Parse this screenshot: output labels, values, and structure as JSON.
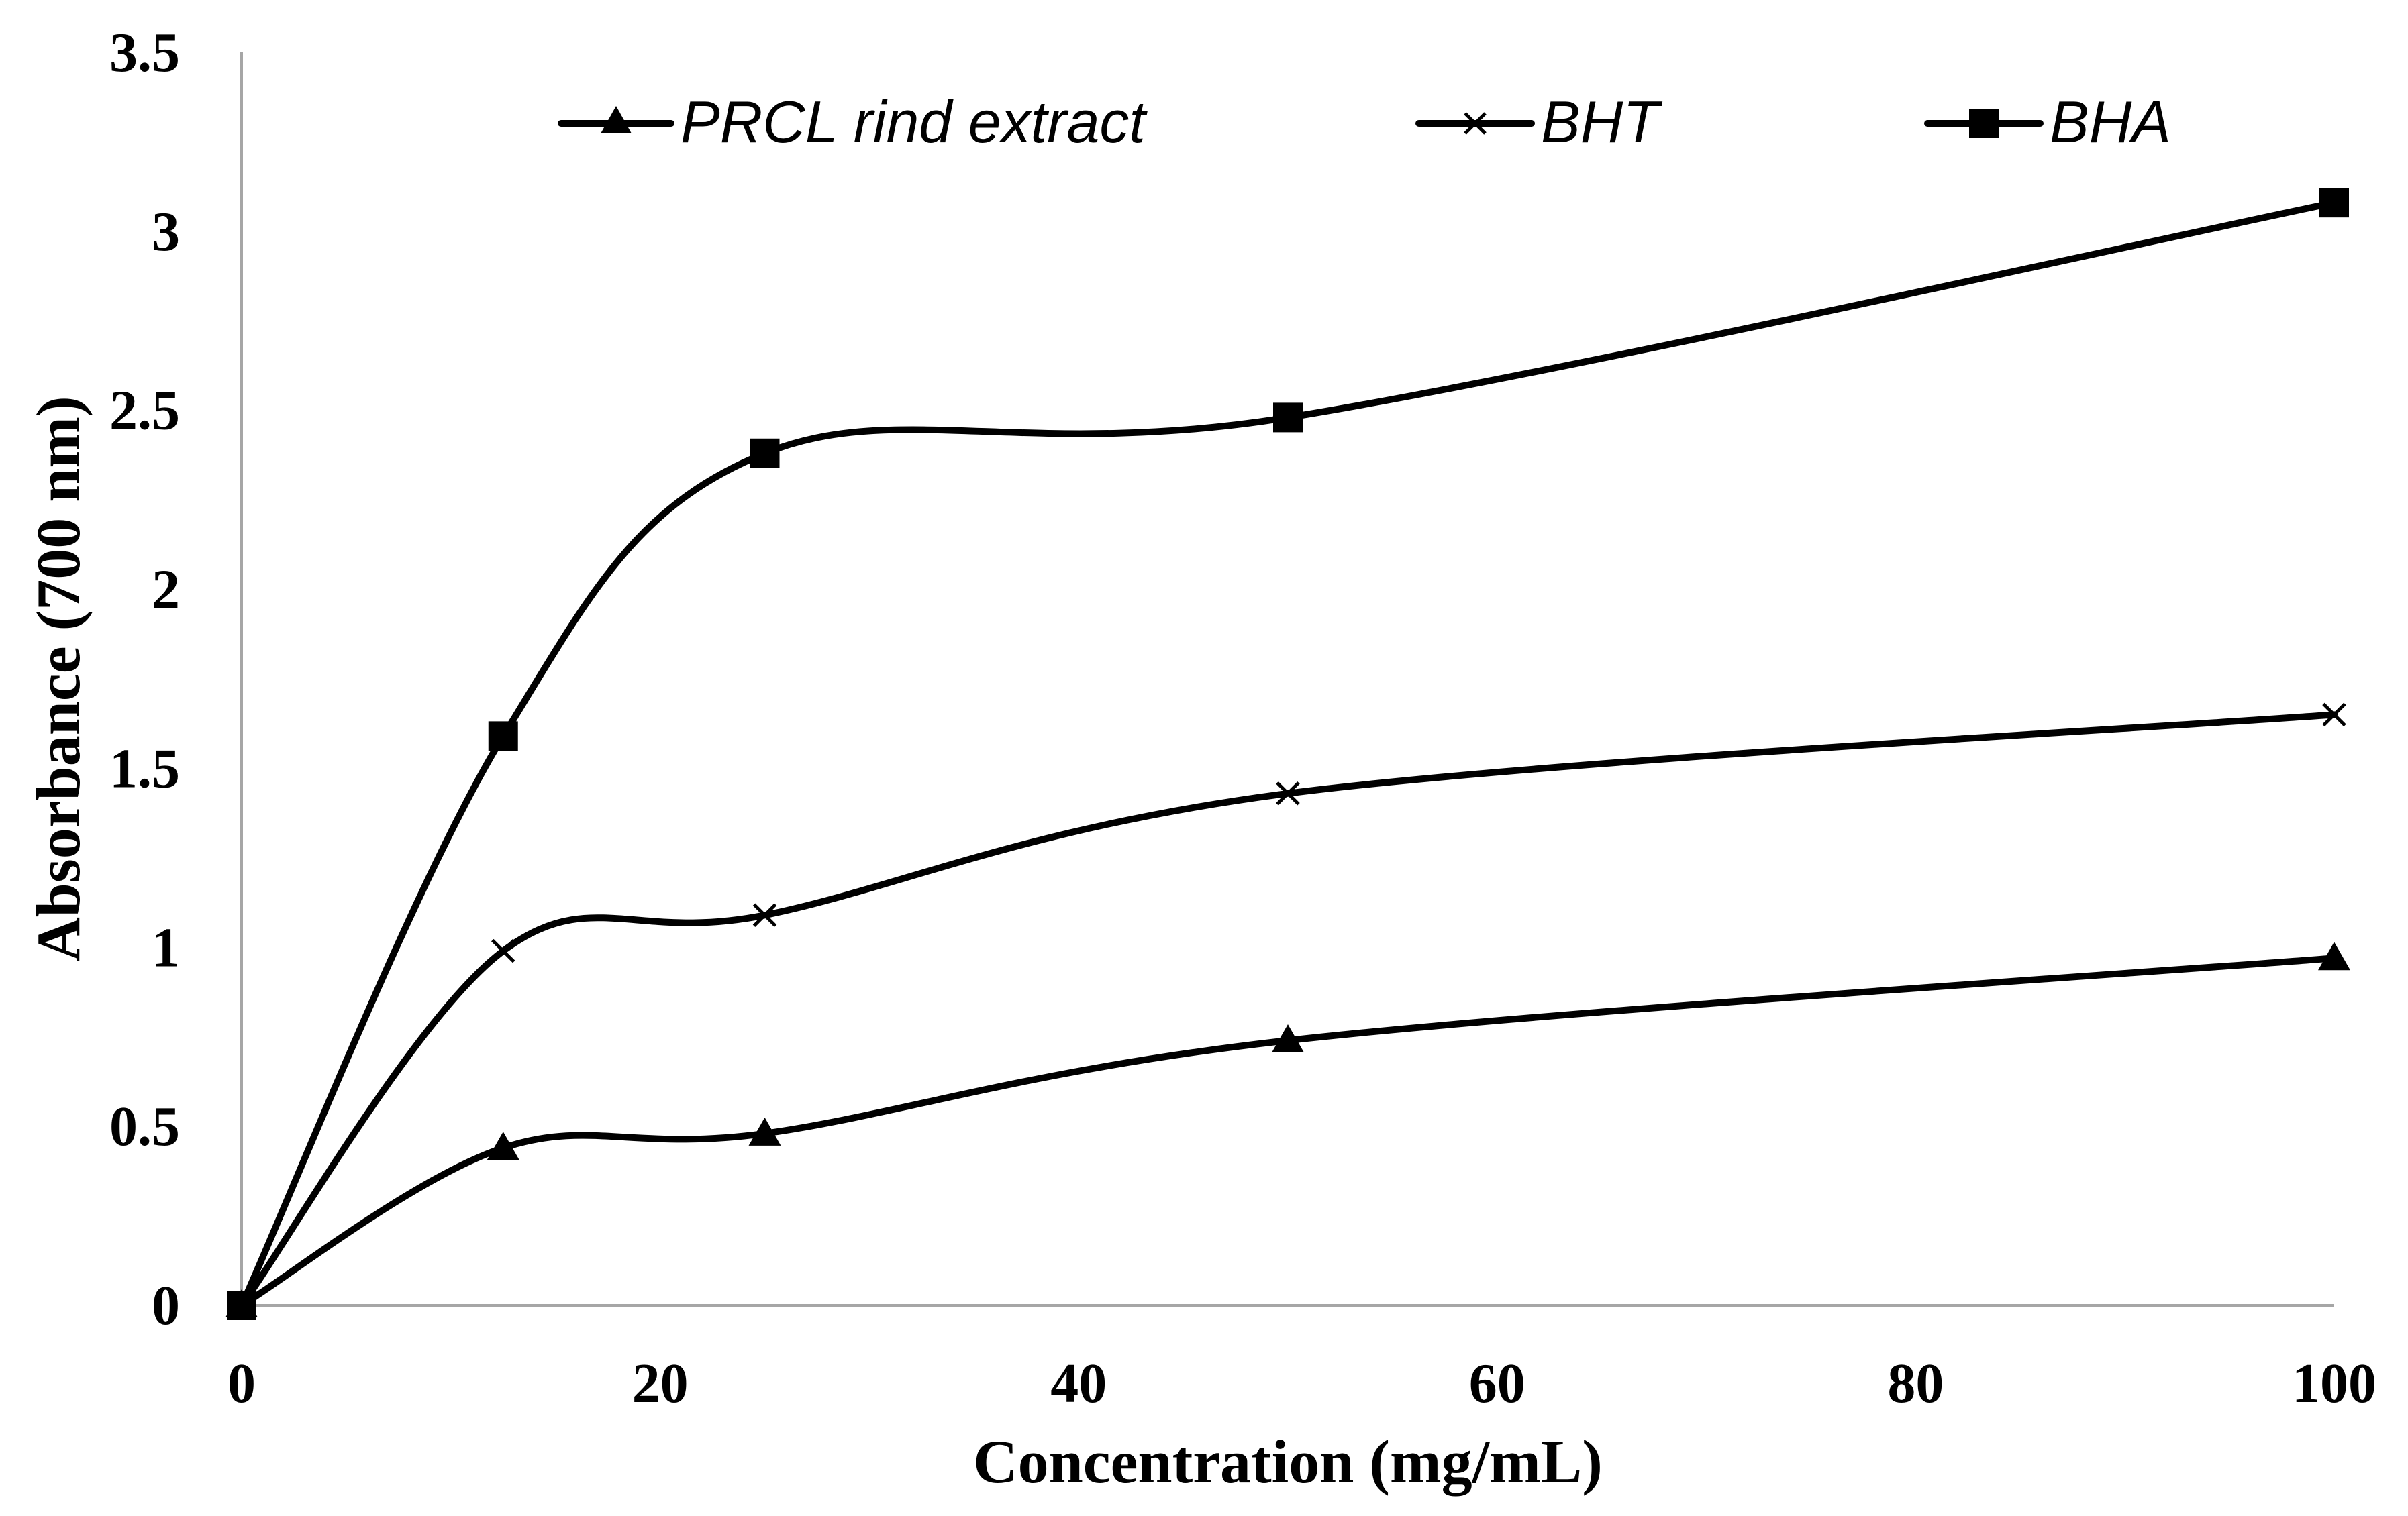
{
  "chart_data": {
    "type": "line",
    "title": "",
    "xlabel": "Concentration (mg/mL)",
    "ylabel": "Absorbance (700 nm)",
    "xlim": [
      0,
      100
    ],
    "ylim": [
      0,
      3.5
    ],
    "x_ticks": [
      "0",
      "20",
      "40",
      "60",
      "80",
      "100"
    ],
    "x_tick_values": [
      0,
      20,
      40,
      60,
      80,
      100
    ],
    "y_ticks": [
      "0",
      "0.5",
      "1",
      "1.5",
      "2",
      "2.5",
      "3",
      "3.5"
    ],
    "y_tick_values": [
      0,
      0.5,
      1,
      1.5,
      2,
      2.5,
      3,
      3.5
    ],
    "grid": false,
    "legend_position": "top",
    "x": [
      0,
      12.5,
      25,
      50,
      100
    ],
    "series": [
      {
        "name": "PRCL rind extract",
        "marker": "triangle",
        "color": "#000000",
        "values": [
          0,
          0.44,
          0.48,
          0.74,
          0.97
        ]
      },
      {
        "name": "BHT",
        "marker": "x",
        "color": "#000000",
        "values": [
          0,
          0.99,
          1.09,
          1.43,
          1.65
        ]
      },
      {
        "name": "BHA",
        "marker": "square",
        "color": "#000000",
        "values": [
          0,
          1.59,
          2.38,
          2.48,
          3.08
        ]
      }
    ]
  }
}
